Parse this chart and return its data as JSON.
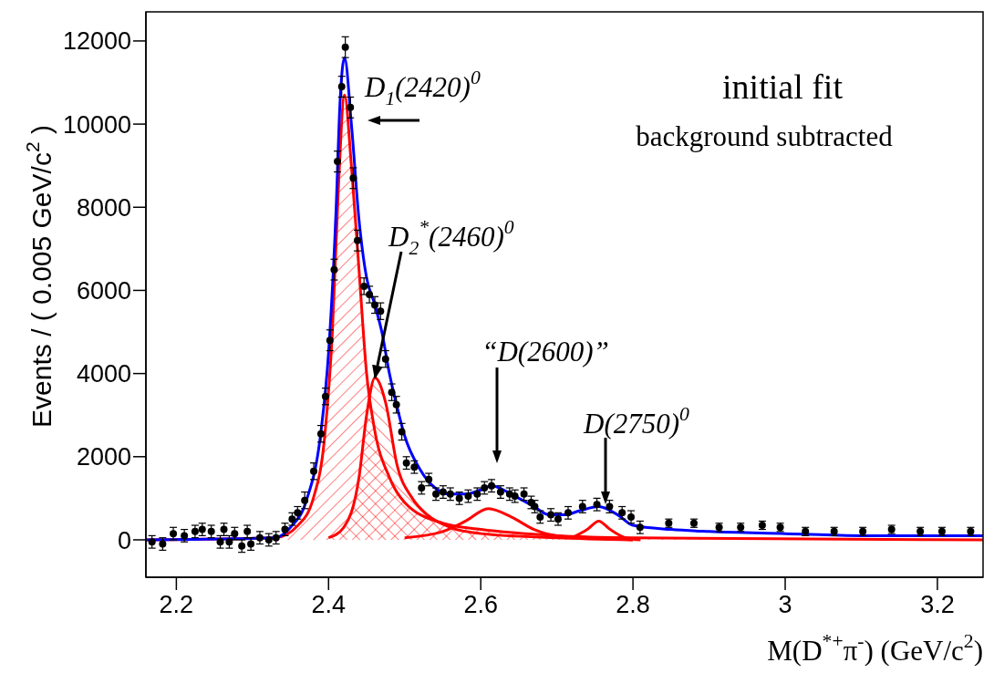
{
  "chart_data": {
    "type": "scatter",
    "title": "initial fit",
    "subtitle": "background subtracted",
    "xlabel": "M(D$^{*+}$π$^{-}$)   (GeV/c$^{2}$)",
    "ylabel": "Events / ( 0.005 GeV/c$^{2}$ )",
    "xlim": [
      2.16,
      3.26
    ],
    "xticks": [
      2.2,
      2.4,
      2.6,
      2.8,
      3,
      3.2
    ],
    "ylim": [
      -900,
      12700
    ],
    "yticks": [
      0,
      2000,
      4000,
      6000,
      8000,
      10000,
      12000
    ],
    "annotations": [
      "D$_{1}$(2420)$^{0}$",
      {
        "text": "D$_{2}$$^{*}$(2460)$^{0}$",
        "x": 2.461,
        "y": 3900
      },
      "“D(2600)”",
      "D(2750)$^{0}$"
    ],
    "series": [
      {
        "type": "area",
        "color": "#ff0000",
        "x": [
          2.16,
          2.33,
          2.36,
          2.38,
          2.395,
          2.405,
          2.413,
          2.421,
          2.43,
          2.44,
          2.45,
          2.46,
          2.48,
          2.5,
          2.55,
          2.6,
          2.7,
          2.8,
          3.26
        ],
        "values": [
          0,
          50,
          350,
          1000,
          2500,
          5000,
          8500,
          10700,
          9000,
          6500,
          4000,
          2700,
          1500,
          900,
          400,
          250,
          100,
          50,
          0
        ]
      },
      {
        "type": "area",
        "color": "#ff0000",
        "x": [
          2.4,
          2.42,
          2.44,
          2.45,
          2.461,
          2.475,
          2.49,
          2.51,
          2.53,
          2.56,
          2.6,
          2.7,
          2.8
        ],
        "values": [
          50,
          300,
          1500,
          3000,
          3900,
          3300,
          1800,
          1000,
          600,
          300,
          150,
          50,
          0
        ]
      },
      {
        "type": "line",
        "color": "#ff0000",
        "x": [
          2.5,
          2.55,
          2.58,
          2.61,
          2.64,
          2.67,
          2.7,
          2.75,
          2.8
        ],
        "values": [
          50,
          200,
          450,
          750,
          550,
          250,
          100,
          50,
          0
        ]
      },
      {
        "type": "line",
        "color": "#ff0000",
        "x": [
          2.72,
          2.74,
          2.755,
          2.77,
          2.79,
          2.81
        ],
        "values": [
          50,
          250,
          450,
          250,
          50,
          0
        ]
      },
      {
        "type": "line",
        "color": "#0000ff",
        "x": [
          2.16,
          2.33,
          2.35,
          2.37,
          2.39,
          2.4,
          2.41,
          2.415,
          2.421,
          2.43,
          2.44,
          2.45,
          2.46,
          2.47,
          2.48,
          2.49,
          2.5,
          2.52,
          2.54,
          2.56,
          2.58,
          2.6,
          2.615,
          2.63,
          2.65,
          2.67,
          2.69,
          2.71,
          2.73,
          2.755,
          2.78,
          2.8,
          2.85,
          2.9,
          3,
          3.1,
          3.26
        ],
        "values": [
          0,
          50,
          300,
          900,
          2600,
          4500,
          8000,
          10500,
          11600,
          10000,
          7700,
          6300,
          5700,
          5000,
          4000,
          3200,
          2500,
          1700,
          1250,
          1100,
          1100,
          1200,
          1300,
          1200,
          1000,
          800,
          600,
          600,
          700,
          800,
          600,
          350,
          250,
          200,
          150,
          100,
          100
        ]
      },
      {
        "color": "#000000",
        "marker": "circle",
        "x": [
          2.168,
          2.182,
          2.196,
          2.2105,
          2.2246,
          2.234,
          2.2459,
          2.2577,
          2.2625,
          2.2695,
          2.2766,
          2.286,
          2.2932,
          2.2979,
          2.3097,
          2.3215,
          2.331,
          2.3427,
          2.3522,
          2.3593,
          2.3687,
          2.3805,
          2.39,
          2.396,
          2.4018,
          2.4074,
          2.4117,
          2.4173,
          2.422,
          2.4287,
          2.4325,
          2.438,
          2.4466,
          2.4537,
          2.4608,
          2.4683,
          2.4749,
          2.483,
          2.4891,
          2.4962,
          2.5023,
          2.5127,
          2.5222,
          2.5317,
          2.5411,
          2.5505,
          2.56,
          2.5718,
          2.5835,
          2.5953,
          2.6048,
          2.6142,
          2.626,
          2.6379,
          2.6449,
          2.6568,
          2.6662,
          2.671,
          2.678,
          2.6921,
          2.7016,
          2.7148,
          2.7337,
          2.7526,
          2.7692,
          2.7857,
          2.7975,
          2.8093,
          2.847,
          2.8801,
          2.9132,
          2.9415,
          2.9699,
          2.9935,
          3.0266,
          3.0643,
          3.102,
          3.1398,
          3.1775,
          3.206,
          3.2437
        ],
        "values": [
          -50,
          -100,
          150,
          100,
          200,
          250,
          200,
          -50,
          250,
          -50,
          150,
          -150,
          200,
          -100,
          50,
          0,
          50,
          250,
          500,
          650,
          950,
          1650,
          2550,
          3450,
          4800,
          6500,
          9100,
          10900,
          11850,
          10400,
          8700,
          7200,
          6100,
          5900,
          5650,
          5500,
          4350,
          3550,
          3250,
          2600,
          1850,
          1750,
          1250,
          1450,
          1100,
          1150,
          1100,
          1000,
          1050,
          1100,
          1250,
          1300,
          1150,
          1100,
          1050,
          1100,
          900,
          800,
          550,
          600,
          500,
          650,
          800,
          850,
          800,
          650,
          550,
          300,
          400,
          400,
          300,
          300,
          350,
          300,
          200,
          200,
          200,
          250,
          200,
          200,
          200
        ],
        "errors": [
          150,
          150,
          150,
          150,
          150,
          150,
          150,
          150,
          150,
          150,
          150,
          150,
          150,
          150,
          150,
          150,
          150,
          150,
          150,
          150,
          200,
          200,
          200,
          200,
          250,
          250,
          250,
          250,
          250,
          250,
          250,
          250,
          200,
          200,
          200,
          200,
          200,
          200,
          200,
          200,
          150,
          150,
          150,
          150,
          150,
          150,
          150,
          150,
          150,
          150,
          150,
          150,
          150,
          150,
          150,
          150,
          150,
          150,
          150,
          150,
          150,
          150,
          150,
          150,
          150,
          150,
          150,
          150,
          100,
          100,
          100,
          100,
          100,
          100,
          100,
          100,
          100,
          100,
          100,
          100,
          100
        ]
      }
    ]
  }
}
